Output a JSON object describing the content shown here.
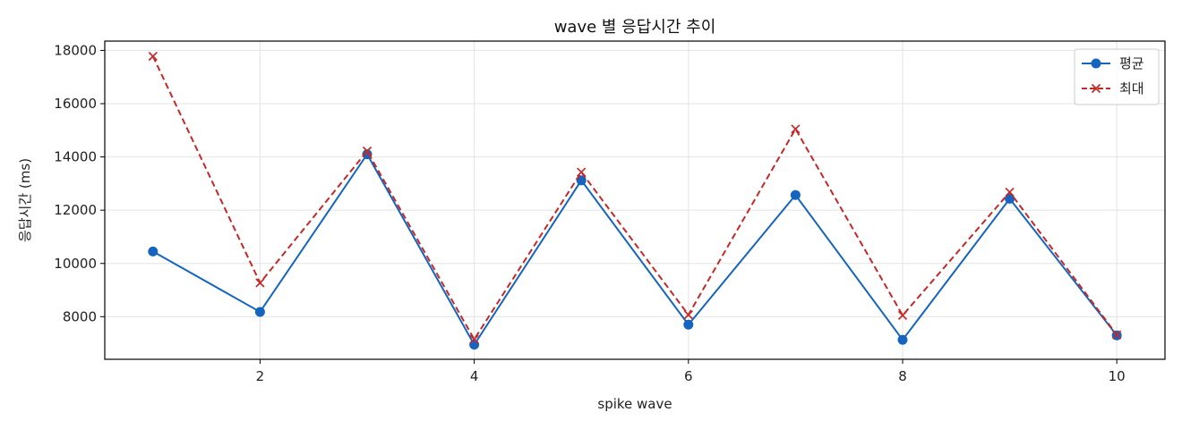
{
  "chart_data": {
    "type": "line",
    "title": "wave 별 응답시간 추이",
    "xlabel": "spike wave",
    "ylabel": "응답시간 (ms)",
    "x": [
      1,
      2,
      3,
      4,
      5,
      6,
      7,
      8,
      9,
      10
    ],
    "xlim": [
      0.55,
      10.45
    ],
    "ylim": [
      6400,
      18350
    ],
    "xticks": [
      2,
      4,
      6,
      8,
      10
    ],
    "yticks": [
      8000,
      10000,
      12000,
      14000,
      16000,
      18000
    ],
    "grid": true,
    "legend_position": "top-right",
    "series": [
      {
        "name": "평균",
        "color": "#1565c0",
        "line_style": "solid",
        "marker": "circle",
        "values": [
          10450,
          8180,
          14100,
          6950,
          13120,
          7700,
          12570,
          7130,
          12430,
          7300
        ]
      },
      {
        "name": "최대",
        "color": "#c62828",
        "line_style": "dashed",
        "marker": "x",
        "values": [
          17780,
          9270,
          14220,
          7150,
          13430,
          8070,
          15050,
          8050,
          12680,
          7320
        ]
      }
    ]
  }
}
